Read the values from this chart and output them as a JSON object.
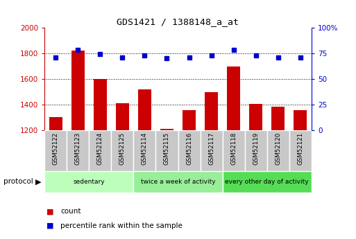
{
  "title": "GDS1421 / 1388148_a_at",
  "samples": [
    "GSM52122",
    "GSM52123",
    "GSM52124",
    "GSM52125",
    "GSM52114",
    "GSM52115",
    "GSM52116",
    "GSM52117",
    "GSM52118",
    "GSM52119",
    "GSM52120",
    "GSM52121"
  ],
  "counts": [
    1300,
    1820,
    1600,
    1410,
    1520,
    1210,
    1355,
    1495,
    1695,
    1405,
    1385,
    1355
  ],
  "percentile_ranks": [
    71,
    78,
    74,
    71,
    73,
    70,
    71,
    73,
    78,
    73,
    71,
    71
  ],
  "ylim_left": [
    1200,
    2000
  ],
  "ylim_right": [
    0,
    100
  ],
  "yticks_left": [
    1200,
    1400,
    1600,
    1800,
    2000
  ],
  "yticks_right": [
    0,
    25,
    50,
    75,
    100
  ],
  "bar_color": "#cc0000",
  "dot_color": "#0000cc",
  "groups": [
    {
      "label": "sedentary",
      "start": 0,
      "end": 4,
      "color": "#bbffbb"
    },
    {
      "label": "twice a week of activity",
      "start": 4,
      "end": 8,
      "color": "#99ee99"
    },
    {
      "label": "every other day of activity",
      "start": 8,
      "end": 12,
      "color": "#55dd55"
    }
  ],
  "protocol_label": "protocol",
  "legend_count_label": "count",
  "legend_pct_label": "percentile rank within the sample",
  "bar_width": 0.6,
  "bg_color": "#ffffff",
  "grid_color": "#000000",
  "sample_box_color": "#c8c8c8",
  "left_tick_color": "#cc0000",
  "right_tick_color": "#0000cc"
}
